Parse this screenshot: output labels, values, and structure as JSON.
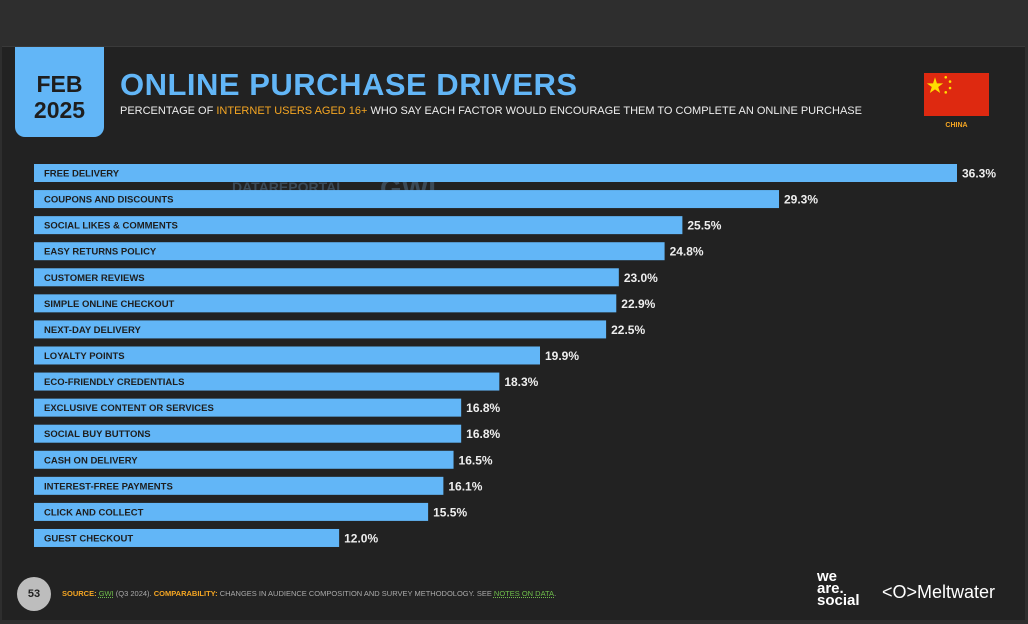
{
  "header": {
    "date_month": "FEB",
    "date_year": "2025",
    "title": "ONLINE PURCHASE DRIVERS",
    "subtitle_pre": "PERCENTAGE OF ",
    "subtitle_highlight": "INTERNET USERS AGED 16+",
    "subtitle_post": " WHO SAY EACH FACTOR WOULD ENCOURAGE THEM TO COMPLETE AN ONLINE PURCHASE",
    "country": "CHINA",
    "flag_icon": "china-flag"
  },
  "watermark": {
    "left": "DATAREPORTAL",
    "right": "GWI."
  },
  "chart_data": {
    "type": "bar",
    "orientation": "horizontal",
    "categories": [
      "FREE DELIVERY",
      "COUPONS AND DISCOUNTS",
      "SOCIAL LIKES & COMMENTS",
      "EASY RETURNS POLICY",
      "CUSTOMER REVIEWS",
      "SIMPLE ONLINE CHECKOUT",
      "NEXT-DAY DELIVERY",
      "LOYALTY POINTS",
      "ECO-FRIENDLY CREDENTIALS",
      "EXCLUSIVE CONTENT OR SERVICES",
      "SOCIAL BUY BUTTONS",
      "CASH ON DELIVERY",
      "INTEREST-FREE PAYMENTS",
      "CLICK AND COLLECT",
      "GUEST CHECKOUT"
    ],
    "values": [
      36.3,
      29.3,
      25.5,
      24.8,
      23.0,
      22.9,
      22.5,
      19.9,
      18.3,
      16.8,
      16.8,
      16.5,
      16.1,
      15.5,
      12.0
    ],
    "value_labels": [
      "36.3%",
      "29.3%",
      "25.5%",
      "24.8%",
      "23.0%",
      "22.9%",
      "22.5%",
      "19.9%",
      "18.3%",
      "16.8%",
      "16.8%",
      "16.5%",
      "16.1%",
      "15.5%",
      "12.0%"
    ],
    "bar_color": "#62b6f7",
    "grid": false
  },
  "footer": {
    "page": "53",
    "source_label": "SOURCE:",
    "source_link": "GWI",
    "source_text": " (Q3 2024). ",
    "comp_label": "COMPARABILITY:",
    "comp_text": " CHANGES IN AUDIENCE COMPOSITION AND SURVEY METHODOLOGY. SEE ",
    "notes_link": "NOTES ON DATA",
    "notes_end": ".",
    "brand1": "we are. social",
    "brand2": "<O>Meltwater"
  }
}
